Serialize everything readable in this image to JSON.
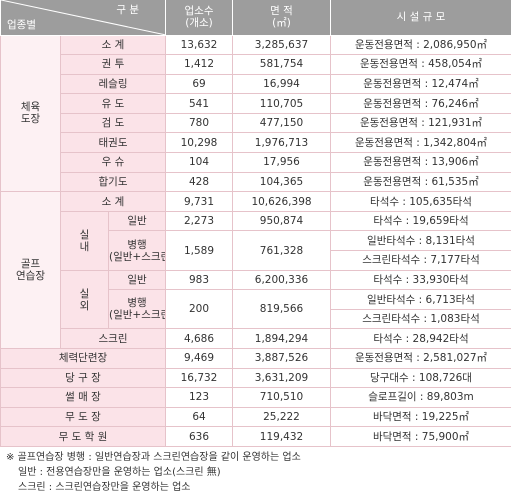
{
  "header": {
    "division": "구 분",
    "category": "업종별",
    "count": [
      "업소수",
      "(개소)"
    ],
    "area": [
      "면 적",
      "(㎡)"
    ],
    "facility": "시 설 규 모"
  },
  "sports": {
    "label": [
      "체육",
      "도장"
    ],
    "rows": [
      {
        "name": "소 계",
        "count": "13,632",
        "area": "3,285,637",
        "facility": "운동전용면적 : 2,086,950㎡"
      },
      {
        "name": "권 투",
        "count": "1,412",
        "area": "581,754",
        "facility": "운동전용면적 : 458,054㎡"
      },
      {
        "name": "레슬링",
        "count": "69",
        "area": "16,994",
        "facility": "운동전용면적 : 12,474㎡"
      },
      {
        "name": "유 도",
        "count": "541",
        "area": "110,705",
        "facility": "운동전용면적 : 76,246㎡"
      },
      {
        "name": "검 도",
        "count": "780",
        "area": "477,150",
        "facility": "운동전용면적 : 121,931㎡"
      },
      {
        "name": "태권도",
        "count": "10,298",
        "area": "1,976,713",
        "facility": "운동전용면적 : 1,342,804㎡"
      },
      {
        "name": "우 슈",
        "count": "104",
        "area": "17,956",
        "facility": "운동전용면적 : 13,906㎡"
      },
      {
        "name": "합기도",
        "count": "428",
        "area": "104,365",
        "facility": "운동전용면적 : 61,535㎡"
      }
    ]
  },
  "golf": {
    "label": [
      "골프",
      "연습장"
    ],
    "subtotal": {
      "name": "소 계",
      "count": "9,731",
      "area": "10,626,398",
      "facility": "타석수 : 105,635타석"
    },
    "indoor": {
      "label": [
        "실",
        "내"
      ],
      "general": {
        "name": "일반",
        "count": "2,273",
        "area": "950,874",
        "facility": "타석수 : 19,659타석"
      },
      "combined": {
        "name": [
          "병행",
          "(일반+스크린)"
        ],
        "count": "1,589",
        "area": "761,328",
        "facility": [
          "일반타석수 : 8,131타석",
          "스크린타석수 : 7,177타석"
        ]
      }
    },
    "outdoor": {
      "label": [
        "실",
        "외"
      ],
      "general": {
        "name": "일반",
        "count": "983",
        "area": "6,200,336",
        "facility": "타석수 : 33,930타석"
      },
      "combined": {
        "name": [
          "병행",
          "(일반+스크린)"
        ],
        "count": "200",
        "area": "819,566",
        "facility": [
          "일반타석수 : 6,713타석",
          "스크린타석수 : 1,083타석"
        ]
      }
    },
    "screen": {
      "name": "스크린",
      "count": "4,686",
      "area": "1,894,294",
      "facility": "타석수 : 28,942타석"
    }
  },
  "others": [
    {
      "name": "체력단련장",
      "count": "9,469",
      "area": "3,887,526",
      "facility": "운동전용면적 : 2,581,027㎡"
    },
    {
      "name": "당 구 장",
      "count": "16,732",
      "area": "3,631,209",
      "facility": "당구대수 : 108,726대"
    },
    {
      "name": "썰 매 장",
      "count": "123",
      "area": "710,510",
      "facility": "슬로프길이 : 89,803m"
    },
    {
      "name": "무 도 장",
      "count": "64",
      "area": "25,222",
      "facility": "바닥면적 : 19,225㎡"
    },
    {
      "name": "무 도 학 원",
      "count": "636",
      "area": "119,432",
      "facility": "바닥면적 : 75,900㎡"
    }
  ],
  "notes": [
    "※ 골프연습장 병행 : 일반연습장과 스크린연습장을 같이 운영하는 업소",
    "일반 : 전용연습장만을 운영하는 업소(스크린 無)",
    "스크린 : 스크린연습장만을 운영하는 업소"
  ]
}
